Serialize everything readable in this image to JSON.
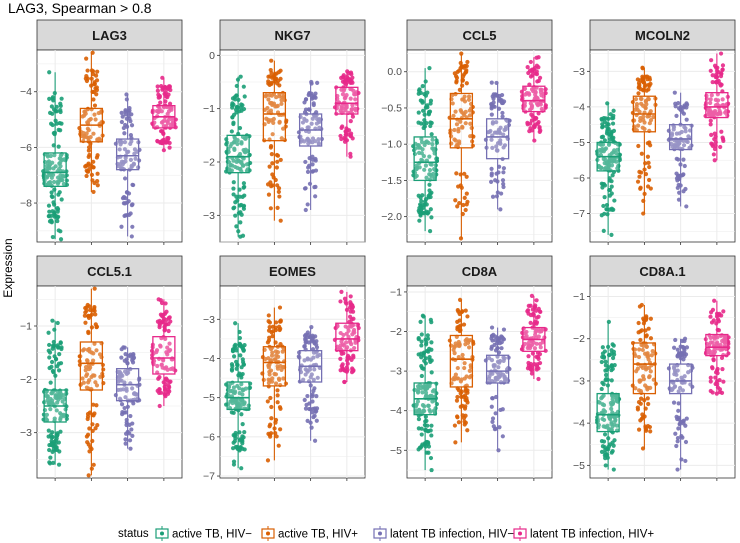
{
  "figure": {
    "title": "LAG3, Spearman > 0.8",
    "ylabel": "Expression",
    "legend_title": "status"
  },
  "groups": [
    {
      "label": "active TB, HIV−",
      "color": "#1b9e77"
    },
    {
      "label": "active TB, HIV+",
      "color": "#d95f02"
    },
    {
      "label": "latent TB infection, HIV−",
      "color": "#7570b3"
    },
    {
      "label": "latent TB infection, HIV+",
      "color": "#e7298a"
    }
  ],
  "chart_data": [
    {
      "type": "boxplot",
      "title": "LAG3",
      "ylim": [
        -9.4,
        -2.5
      ],
      "yticks": [
        -4,
        -6,
        -8
      ],
      "series": [
        {
          "name": "active TB, HIV−",
          "n": 140,
          "min": -9.3,
          "q1": -7.4,
          "median": -6.9,
          "q3": -6.2,
          "max": -3.3
        },
        {
          "name": "active TB, HIV+",
          "n": 100,
          "min": -7.6,
          "q1": -5.8,
          "median": -5.2,
          "q3": -4.6,
          "max": -2.6
        },
        {
          "name": "latent TB infection, HIV−",
          "n": 90,
          "min": -9.2,
          "q1": -6.8,
          "median": -6.3,
          "q3": -5.7,
          "max": -4.1
        },
        {
          "name": "latent TB infection, HIV+",
          "n": 100,
          "min": -6.1,
          "q1": -5.3,
          "median": -4.9,
          "q3": -4.5,
          "max": -3.5
        }
      ]
    },
    {
      "type": "boxplot",
      "title": "NKG7",
      "ylim": [
        -3.5,
        0.1
      ],
      "yticks": [
        0,
        -1,
        -2,
        -3
      ],
      "series": [
        {
          "name": "active TB, HIV−",
          "n": 140,
          "min": -3.4,
          "q1": -2.2,
          "median": -1.9,
          "q3": -1.5,
          "max": -0.4
        },
        {
          "name": "active TB, HIV+",
          "n": 100,
          "min": -3.1,
          "q1": -1.6,
          "median": -1.1,
          "q3": -0.7,
          "max": -0.1
        },
        {
          "name": "latent TB infection, HIV−",
          "n": 90,
          "min": -2.9,
          "q1": -1.7,
          "median": -1.4,
          "q3": -1.1,
          "max": -0.5
        },
        {
          "name": "latent TB infection, HIV+",
          "n": 100,
          "min": -1.9,
          "q1": -1.1,
          "median": -0.9,
          "q3": -0.6,
          "max": -0.3
        }
      ]
    },
    {
      "type": "boxplot",
      "title": "CCL5",
      "ylim": [
        -2.35,
        0.3
      ],
      "yticks": [
        0.0,
        -0.5,
        -1.0,
        -1.5,
        -2.0
      ],
      "series": [
        {
          "name": "active TB, HIV−",
          "n": 140,
          "min": -2.2,
          "q1": -1.5,
          "median": -1.25,
          "q3": -0.9,
          "max": 0.05
        },
        {
          "name": "active TB, HIV+",
          "n": 100,
          "min": -2.3,
          "q1": -1.05,
          "median": -0.65,
          "q3": -0.3,
          "max": 0.25
        },
        {
          "name": "latent TB infection, HIV−",
          "n": 90,
          "min": -1.9,
          "q1": -1.2,
          "median": -0.9,
          "q3": -0.65,
          "max": -0.15
        },
        {
          "name": "latent TB infection, HIV+",
          "n": 100,
          "min": -0.95,
          "q1": -0.55,
          "median": -0.4,
          "q3": -0.2,
          "max": 0.2
        }
      ]
    },
    {
      "type": "boxplot",
      "title": "MCOLN2",
      "ylim": [
        -7.8,
        -2.4
      ],
      "yticks": [
        -3,
        -4,
        -5,
        -6,
        -7
      ],
      "series": [
        {
          "name": "active TB, HIV−",
          "n": 140,
          "min": -7.6,
          "q1": -5.8,
          "median": -5.4,
          "q3": -5.0,
          "max": -3.9
        },
        {
          "name": "active TB, HIV+",
          "n": 100,
          "min": -7.0,
          "q1": -4.7,
          "median": -4.2,
          "q3": -3.7,
          "max": -2.9
        },
        {
          "name": "latent TB infection, HIV−",
          "n": 90,
          "min": -6.8,
          "q1": -5.2,
          "median": -4.9,
          "q3": -4.5,
          "max": -3.6
        },
        {
          "name": "latent TB infection, HIV+",
          "n": 100,
          "min": -5.5,
          "q1": -4.3,
          "median": -4.0,
          "q3": -3.6,
          "max": -2.5
        }
      ]
    },
    {
      "type": "boxplot",
      "title": "CCL5.1",
      "ylim": [
        -3.85,
        -0.25
      ],
      "yticks": [
        -1,
        -2,
        -3
      ],
      "series": [
        {
          "name": "active TB, HIV−",
          "n": 140,
          "min": -3.6,
          "q1": -2.8,
          "median": -2.5,
          "q3": -2.2,
          "max": -0.9
        },
        {
          "name": "active TB, HIV+",
          "n": 100,
          "min": -3.8,
          "q1": -2.2,
          "median": -1.7,
          "q3": -1.3,
          "max": -0.3
        },
        {
          "name": "latent TB infection, HIV−",
          "n": 90,
          "min": -3.3,
          "q1": -2.4,
          "median": -2.1,
          "q3": -1.8,
          "max": -1.4
        },
        {
          "name": "latent TB infection, HIV+",
          "n": 100,
          "min": -2.5,
          "q1": -1.9,
          "median": -1.6,
          "q3": -1.2,
          "max": -0.5
        }
      ]
    },
    {
      "type": "boxplot",
      "title": "EOMES",
      "ylim": [
        -7.05,
        -2.15
      ],
      "yticks": [
        -3,
        -4,
        -5,
        -6,
        -7
      ],
      "series": [
        {
          "name": "active TB, HIV−",
          "n": 140,
          "min": -6.8,
          "q1": -5.3,
          "median": -5.0,
          "q3": -4.6,
          "max": -3.1
        },
        {
          "name": "active TB, HIV+",
          "n": 100,
          "min": -6.6,
          "q1": -4.7,
          "median": -4.1,
          "q3": -3.7,
          "max": -2.7
        },
        {
          "name": "latent TB infection, HIV−",
          "n": 90,
          "min": -6.1,
          "q1": -4.6,
          "median": -4.2,
          "q3": -3.8,
          "max": -3.2
        },
        {
          "name": "latent TB infection, HIV+",
          "n": 100,
          "min": -4.6,
          "q1": -3.8,
          "median": -3.5,
          "q3": -3.1,
          "max": -2.3
        }
      ]
    },
    {
      "type": "boxplot",
      "title": "CD8A",
      "ylim": [
        -5.7,
        -0.85
      ],
      "yticks": [
        -1,
        -2,
        -3,
        -4,
        -5
      ],
      "series": [
        {
          "name": "active TB, HIV−",
          "n": 140,
          "min": -5.5,
          "q1": -4.1,
          "median": -3.7,
          "q3": -3.3,
          "max": -1.6
        },
        {
          "name": "active TB, HIV+",
          "n": 100,
          "min": -4.8,
          "q1": -3.4,
          "median": -2.7,
          "q3": -2.1,
          "max": -1.2
        },
        {
          "name": "latent TB infection, HIV−",
          "n": 90,
          "min": -5.0,
          "q1": -3.3,
          "median": -3.0,
          "q3": -2.6,
          "max": -1.9
        },
        {
          "name": "latent TB infection, HIV+",
          "n": 100,
          "min": -3.2,
          "q1": -2.5,
          "median": -2.2,
          "q3": -1.9,
          "max": -1.1
        }
      ]
    },
    {
      "type": "boxplot",
      "title": "CD8A.1",
      "ylim": [
        -5.3,
        -0.75
      ],
      "yticks": [
        -1,
        -2,
        -3,
        -4,
        -5
      ],
      "series": [
        {
          "name": "active TB, HIV−",
          "n": 140,
          "min": -5.1,
          "q1": -4.2,
          "median": -3.8,
          "q3": -3.3,
          "max": -1.6
        },
        {
          "name": "active TB, HIV+",
          "n": 100,
          "min": -4.6,
          "q1": -3.3,
          "median": -2.6,
          "q3": -2.1,
          "max": -1.2
        },
        {
          "name": "latent TB infection, HIV−",
          "n": 90,
          "min": -5.1,
          "q1": -3.3,
          "median": -3.0,
          "q3": -2.6,
          "max": -2.0
        },
        {
          "name": "latent TB infection, HIV+",
          "n": 100,
          "min": -3.3,
          "q1": -2.4,
          "median": -2.2,
          "q3": -1.9,
          "max": -1.1
        }
      ]
    }
  ]
}
